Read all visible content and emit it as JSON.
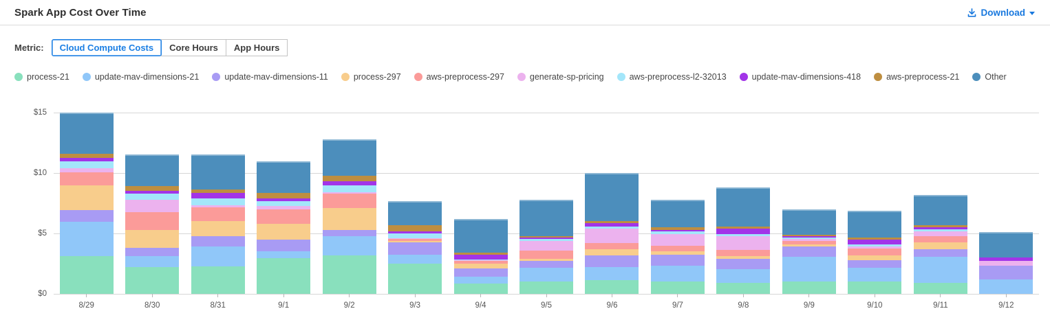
{
  "header": {
    "title": "Spark App Cost Over Time",
    "download_label": "Download"
  },
  "icons": {
    "download": "download-tray-arrow",
    "caret": "caret-down"
  },
  "metric": {
    "label": "Metric:",
    "options": [
      {
        "label": "Cloud Compute Costs",
        "selected": true
      },
      {
        "label": "Core Hours",
        "selected": false
      },
      {
        "label": "App Hours",
        "selected": false
      }
    ]
  },
  "chart_data": {
    "type": "bar",
    "stacked": true,
    "title": "Spark App Cost Over Time",
    "xlabel": "",
    "ylabel": "",
    "ylim": [
      0,
      15
    ],
    "grid": true,
    "legend_position": "top",
    "yticks": [
      {
        "label": "$0",
        "value": 0
      },
      {
        "label": "$5",
        "value": 5
      },
      {
        "label": "$10",
        "value": 10
      },
      {
        "label": "$15",
        "value": 15
      }
    ],
    "categories": [
      "8/29",
      "8/30",
      "8/31",
      "9/1",
      "9/2",
      "9/3",
      "9/4",
      "9/5",
      "9/6",
      "9/7",
      "9/8",
      "9/9",
      "9/10",
      "9/11",
      "9/12"
    ],
    "series": [
      {
        "name": "process-21",
        "color": "#89e0bd",
        "values": [
          3.1,
          2.2,
          2.3,
          2.95,
          3.2,
          2.5,
          0.85,
          1.0,
          1.15,
          1.0,
          0.9,
          1.05,
          1.05,
          0.9,
          0.0
        ]
      },
      {
        "name": "update-mav-dimensions-21",
        "color": "#90c7f9",
        "values": [
          2.85,
          0.9,
          1.65,
          0.6,
          1.55,
          0.75,
          0.55,
          1.15,
          1.05,
          1.35,
          1.15,
          2.0,
          1.1,
          2.15,
          1.2
        ]
      },
      {
        "name": "update-mav-dimensions-11",
        "color": "#a89bf4",
        "values": [
          1.0,
          0.7,
          0.8,
          0.95,
          0.55,
          1.0,
          0.7,
          0.6,
          1.0,
          0.9,
          0.85,
          0.85,
          0.65,
          0.65,
          1.15
        ]
      },
      {
        "name": "process-297",
        "color": "#f8cd8c",
        "values": [
          2.05,
          1.5,
          1.25,
          1.3,
          1.8,
          0.15,
          0.4,
          0.15,
          0.5,
          0.3,
          0.25,
          0.2,
          0.4,
          0.55,
          0.0
        ]
      },
      {
        "name": "aws-preprocess-297",
        "color": "#fb9b99",
        "values": [
          1.05,
          1.45,
          1.15,
          1.2,
          1.2,
          0.15,
          0.25,
          0.7,
          0.5,
          0.45,
          0.5,
          0.3,
          0.55,
          0.55,
          0.0
        ]
      },
      {
        "name": "generate-sp-pricing",
        "color": "#ecb2ee",
        "values": [
          0.35,
          1.05,
          0.2,
          0.3,
          0.1,
          0.05,
          0.05,
          0.8,
          1.2,
          0.95,
          1.15,
          0.15,
          0.15,
          0.35,
          0.4
        ]
      },
      {
        "name": "aws-preprocess-l2-32013",
        "color": "#a3e6fa",
        "values": [
          0.55,
          0.5,
          0.55,
          0.4,
          0.6,
          0.4,
          0.05,
          0.15,
          0.15,
          0.2,
          0.15,
          0.1,
          0.2,
          0.2,
          0.0
        ]
      },
      {
        "name": "update-mav-dimensions-418",
        "color": "#a234e8",
        "values": [
          0.3,
          0.25,
          0.45,
          0.2,
          0.3,
          0.15,
          0.4,
          0.1,
          0.3,
          0.15,
          0.45,
          0.1,
          0.4,
          0.15,
          0.25
        ]
      },
      {
        "name": "aws-preprocess-21",
        "color": "#be8e40",
        "values": [
          0.35,
          0.4,
          0.3,
          0.45,
          0.5,
          0.55,
          0.15,
          0.15,
          0.2,
          0.2,
          0.15,
          0.15,
          0.15,
          0.2,
          0.0
        ]
      },
      {
        "name": "Other",
        "color": "#4c8ebc",
        "values": [
          3.4,
          2.6,
          2.9,
          2.65,
          3.0,
          2.0,
          2.8,
          3.0,
          3.95,
          2.3,
          3.25,
          2.1,
          2.25,
          2.5,
          2.1
        ]
      }
    ],
    "totals": [
      15.0,
      11.55,
      11.55,
      11.0,
      12.8,
      7.7,
      6.2,
      7.8,
      10.0,
      7.8,
      8.8,
      7.0,
      6.9,
      8.2,
      5.1
    ],
    "accent_color": "#1b7fe4",
    "gridline_color": "#d6d6d6"
  }
}
